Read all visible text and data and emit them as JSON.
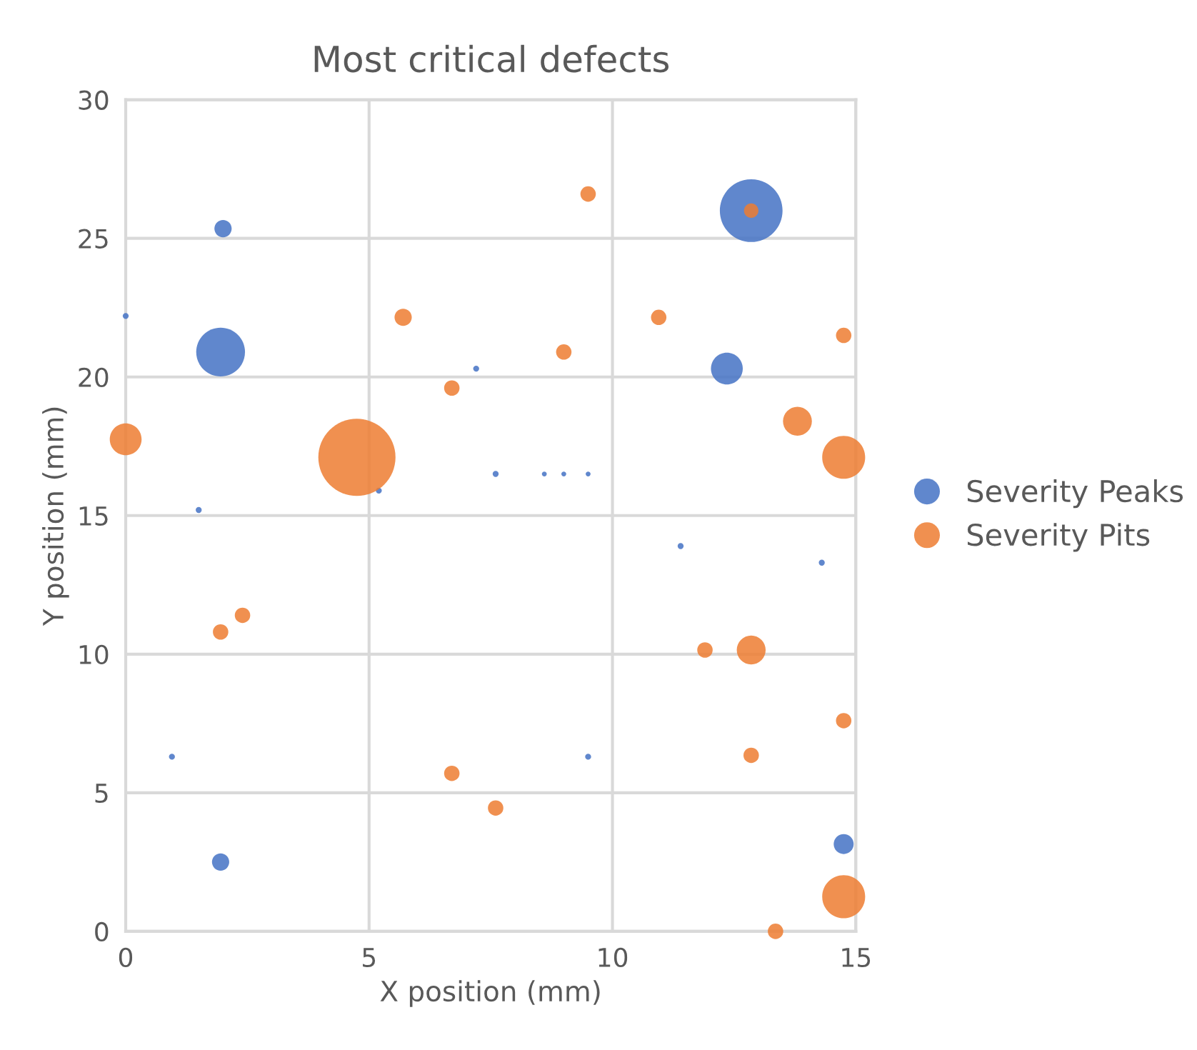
{
  "chart_data": {
    "type": "bubble",
    "title": "Most critical defects",
    "xlabel": "X position (mm)",
    "ylabel": "Y position (mm)",
    "xlim": [
      0,
      15
    ],
    "xticks": [
      0,
      5,
      10,
      15
    ],
    "ylim": [
      0,
      30
    ],
    "yticks": [
      0,
      5,
      10,
      15,
      20,
      25,
      30
    ],
    "grid": true,
    "legend": "right",
    "marker": "circle",
    "series": [
      {
        "name": "Severity Peaks",
        "color": "#4472c4",
        "x": [
          2,
          1.95,
          12.85,
          12.35,
          1.95,
          14.75,
          7.6,
          11.4,
          0.95,
          9.5,
          7.2,
          1.5,
          14.3,
          0,
          5.2,
          8.6,
          9.0,
          9.5
        ],
        "values": [
          25.35,
          20.9,
          26.0,
          20.3,
          2.5,
          3.15,
          16.5,
          13.9,
          6.3,
          6.3,
          20.3,
          15.2,
          13.3,
          22.2,
          15.9,
          16.5,
          16.5,
          16.5
        ],
        "sizes": [
          0.05,
          0.4,
          0.66,
          0.17,
          0.05,
          0.067,
          0.006,
          0.006,
          0.006,
          0.006,
          0.006,
          0.006,
          0.006,
          0.006,
          0.006,
          0.004,
          0.004,
          0.004
        ]
      },
      {
        "name": "Severity Pits",
        "color": "#ed7d31",
        "x": [
          0,
          4.75,
          5.7,
          6.7,
          9.5,
          9.0,
          10.95,
          14.75,
          13.8,
          14.75,
          12.85,
          1.95,
          2.4,
          11.9,
          12.85,
          14.75,
          12.85,
          6.7,
          7.6,
          14.75,
          13.35
        ],
        "values": [
          17.75,
          17.1,
          22.15,
          19.6,
          26.6,
          20.9,
          22.15,
          21.5,
          18.4,
          17.1,
          26.0,
          10.8,
          11.4,
          10.15,
          10.15,
          7.6,
          6.35,
          5.7,
          4.45,
          1.25,
          0
        ],
        "sizes": [
          0.17,
          1,
          0.05,
          0.04,
          0.04,
          0.04,
          0.04,
          0.04,
          0.14,
          0.31,
          0.035,
          0.04,
          0.04,
          0.04,
          0.14,
          0.04,
          0.04,
          0.04,
          0.04,
          0.31,
          0.04
        ]
      }
    ]
  }
}
